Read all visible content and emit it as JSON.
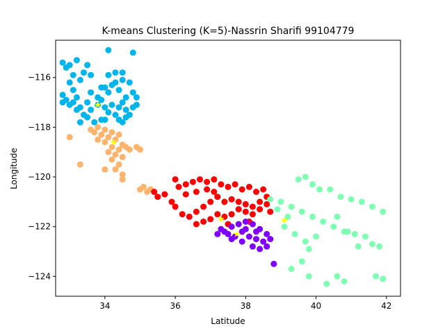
{
  "chart_data": {
    "type": "scatter",
    "title": "K-means Clustering (K=5)-Nassrin Sharifi 99104779",
    "xlabel": "Latitude",
    "ylabel": "Longitude",
    "xlim": [
      32.6,
      42.4
    ],
    "ylim": [
      -124.8,
      -114.5
    ],
    "xticks": [
      34,
      36,
      38,
      40,
      42
    ],
    "yticks": [
      -124,
      -122,
      -120,
      -118,
      -116
    ],
    "grid": false,
    "legend": "none",
    "series": [
      {
        "color": "#00b5eb",
        "points": [
          [
            32.8,
            -115.4
          ],
          [
            32.9,
            -115.6
          ],
          [
            33.0,
            -115.5
          ],
          [
            33.2,
            -115.3
          ],
          [
            33.1,
            -115.9
          ],
          [
            33.4,
            -115.8
          ],
          [
            33.5,
            -115.5
          ],
          [
            33.6,
            -115.9
          ],
          [
            33.3,
            -116.1
          ],
          [
            33.0,
            -116.2
          ],
          [
            32.8,
            -116.7
          ],
          [
            32.9,
            -116.9
          ],
          [
            33.0,
            -117.1
          ],
          [
            33.1,
            -117.0
          ],
          [
            33.2,
            -116.8
          ],
          [
            33.3,
            -117.2
          ],
          [
            33.5,
            -117.0
          ],
          [
            33.6,
            -117.3
          ],
          [
            33.4,
            -117.5
          ],
          [
            33.2,
            -117.3
          ],
          [
            33.8,
            -117.1
          ],
          [
            33.9,
            -116.9
          ],
          [
            34.0,
            -117.2
          ],
          [
            34.1,
            -117.4
          ],
          [
            34.2,
            -117.1
          ],
          [
            34.3,
            -117.5
          ],
          [
            34.4,
            -117.2
          ],
          [
            34.5,
            -117.0
          ],
          [
            34.6,
            -117.3
          ],
          [
            34.7,
            -117.5
          ],
          [
            34.8,
            -117.2
          ],
          [
            34.9,
            -117.1
          ],
          [
            34.6,
            -117.6
          ],
          [
            34.0,
            -116.4
          ],
          [
            34.2,
            -116.3
          ],
          [
            34.3,
            -116.2
          ],
          [
            34.4,
            -116.5
          ],
          [
            34.5,
            -116.1
          ],
          [
            34.1,
            -115.9
          ],
          [
            34.3,
            -115.8
          ],
          [
            34.5,
            -115.8
          ],
          [
            33.8,
            -116.8
          ],
          [
            33.9,
            -116.4
          ],
          [
            34.1,
            -116.6
          ],
          [
            34.7,
            -116.2
          ],
          [
            34.8,
            -116.6
          ],
          [
            34.9,
            -116.8
          ],
          [
            34.1,
            -114.9
          ],
          [
            34.8,
            -115.0
          ],
          [
            33.9,
            -117.7
          ],
          [
            33.7,
            -117.8
          ],
          [
            33.3,
            -117.8
          ],
          [
            33.5,
            -117.6
          ],
          [
            34.0,
            -117.7
          ],
          [
            34.4,
            -117.7
          ],
          [
            34.5,
            -117.8
          ],
          [
            33.1,
            -116.5
          ],
          [
            32.8,
            -117.0
          ],
          [
            33.6,
            -116.6
          ],
          [
            34.6,
            -116.8
          ]
        ],
        "centroid": [
          33.8,
          -117.1
        ]
      },
      {
        "color": "#ffb46e",
        "points": [
          [
            33.6,
            -118.1
          ],
          [
            33.7,
            -118.2
          ],
          [
            33.8,
            -118.0
          ],
          [
            33.9,
            -118.3
          ],
          [
            34.0,
            -118.1
          ],
          [
            34.1,
            -118.4
          ],
          [
            34.2,
            -118.2
          ],
          [
            34.3,
            -118.5
          ],
          [
            34.0,
            -118.6
          ],
          [
            34.2,
            -118.8
          ],
          [
            34.1,
            -119.0
          ],
          [
            34.3,
            -119.1
          ],
          [
            34.4,
            -118.9
          ],
          [
            34.5,
            -119.2
          ],
          [
            34.2,
            -119.3
          ],
          [
            34.4,
            -119.5
          ],
          [
            34.5,
            -118.7
          ],
          [
            34.6,
            -118.8
          ],
          [
            34.7,
            -118.9
          ],
          [
            34.9,
            -118.8
          ],
          [
            35.0,
            -118.9
          ],
          [
            34.0,
            -119.7
          ],
          [
            34.5,
            -119.9
          ],
          [
            34.5,
            -120.1
          ],
          [
            33.0,
            -118.4
          ],
          [
            33.3,
            -119.5
          ],
          [
            35.0,
            -120.5
          ],
          [
            35.1,
            -120.4
          ],
          [
            35.2,
            -120.6
          ],
          [
            35.3,
            -120.5
          ],
          [
            34.3,
            -119.7
          ],
          [
            33.8,
            -118.5
          ],
          [
            34.4,
            -118.3
          ]
        ],
        "centroid": [
          34.25,
          -118.6
        ]
      },
      {
        "color": "#ff0000",
        "points": [
          [
            35.4,
            -120.6
          ],
          [
            35.5,
            -120.8
          ],
          [
            35.7,
            -120.7
          ],
          [
            35.9,
            -121.0
          ],
          [
            36.0,
            -120.1
          ],
          [
            36.1,
            -120.4
          ],
          [
            36.3,
            -120.3
          ],
          [
            36.5,
            -120.2
          ],
          [
            36.7,
            -120.1
          ],
          [
            36.9,
            -120.2
          ],
          [
            37.1,
            -120.1
          ],
          [
            37.3,
            -120.3
          ],
          [
            37.5,
            -120.4
          ],
          [
            37.7,
            -120.3
          ],
          [
            37.9,
            -120.5
          ],
          [
            38.1,
            -120.4
          ],
          [
            38.3,
            -120.6
          ],
          [
            38.5,
            -120.5
          ],
          [
            38.6,
            -120.8
          ],
          [
            38.4,
            -121.0
          ],
          [
            38.2,
            -121.2
          ],
          [
            38.0,
            -121.1
          ],
          [
            37.8,
            -121.0
          ],
          [
            37.6,
            -120.9
          ],
          [
            37.4,
            -121.0
          ],
          [
            37.2,
            -120.8
          ],
          [
            37.0,
            -121.0
          ],
          [
            36.8,
            -121.2
          ],
          [
            36.6,
            -121.4
          ],
          [
            36.4,
            -121.6
          ],
          [
            36.2,
            -121.5
          ],
          [
            36.0,
            -121.2
          ],
          [
            36.6,
            -121.9
          ],
          [
            36.8,
            -121.8
          ],
          [
            37.0,
            -121.7
          ],
          [
            37.2,
            -121.5
          ],
          [
            37.4,
            -121.6
          ],
          [
            37.6,
            -121.5
          ],
          [
            37.8,
            -121.3
          ],
          [
            38.0,
            -121.4
          ],
          [
            38.2,
            -121.5
          ],
          [
            38.4,
            -121.3
          ],
          [
            38.6,
            -121.1
          ],
          [
            38.7,
            -121.4
          ],
          [
            38.1,
            -121.8
          ],
          [
            37.5,
            -121.9
          ],
          [
            36.3,
            -120.7
          ],
          [
            36.6,
            -120.6
          ],
          [
            36.9,
            -120.5
          ],
          [
            37.1,
            -120.6
          ]
        ],
        "centroid": [
          37.3,
          -121.7
        ]
      },
      {
        "color": "#8000ff",
        "points": [
          [
            37.2,
            -122.3
          ],
          [
            37.4,
            -122.2
          ],
          [
            37.6,
            -122.0
          ],
          [
            37.8,
            -121.9
          ],
          [
            38.0,
            -121.8
          ],
          [
            38.2,
            -121.9
          ],
          [
            38.4,
            -122.1
          ],
          [
            38.6,
            -122.3
          ],
          [
            38.7,
            -122.5
          ],
          [
            38.5,
            -122.6
          ],
          [
            38.3,
            -122.5
          ],
          [
            38.1,
            -122.4
          ],
          [
            37.9,
            -122.2
          ],
          [
            37.7,
            -122.4
          ],
          [
            37.5,
            -122.3
          ],
          [
            37.3,
            -122.1
          ],
          [
            38.2,
            -122.8
          ],
          [
            38.4,
            -122.9
          ],
          [
            38.6,
            -122.8
          ],
          [
            38.8,
            -123.5
          ],
          [
            37.9,
            -122.6
          ],
          [
            38.0,
            -122.1
          ],
          [
            38.3,
            -122.2
          ],
          [
            37.6,
            -122.5
          ]
        ],
        "centroid": [
          37.75,
          -122.3
        ]
      },
      {
        "color": "#80ffb4",
        "points": [
          [
            38.7,
            -120.9
          ],
          [
            39.0,
            -121.0
          ],
          [
            39.3,
            -121.2
          ],
          [
            39.6,
            -121.4
          ],
          [
            39.9,
            -121.6
          ],
          [
            40.2,
            -121.8
          ],
          [
            40.5,
            -122.0
          ],
          [
            40.8,
            -122.2
          ],
          [
            41.1,
            -122.3
          ],
          [
            41.4,
            -122.4
          ],
          [
            39.5,
            -120.1
          ],
          [
            39.7,
            -120.0
          ],
          [
            39.9,
            -120.3
          ],
          [
            40.1,
            -120.5
          ],
          [
            40.4,
            -120.5
          ],
          [
            40.7,
            -120.8
          ],
          [
            41.0,
            -120.9
          ],
          [
            41.3,
            -121.0
          ],
          [
            41.6,
            -121.2
          ],
          [
            41.9,
            -121.4
          ],
          [
            39.1,
            -122.0
          ],
          [
            39.4,
            -122.3
          ],
          [
            39.7,
            -122.6
          ],
          [
            40.0,
            -122.4
          ],
          [
            39.8,
            -122.9
          ],
          [
            39.6,
            -123.4
          ],
          [
            39.3,
            -123.7
          ],
          [
            41.2,
            -122.8
          ],
          [
            41.6,
            -122.7
          ],
          [
            41.8,
            -122.8
          ],
          [
            41.7,
            -124.0
          ],
          [
            41.9,
            -124.1
          ],
          [
            40.6,
            -124.0
          ],
          [
            40.8,
            -124.2
          ],
          [
            40.3,
            -124.3
          ],
          [
            39.8,
            -124.0
          ],
          [
            40.9,
            -122.2
          ],
          [
            39.2,
            -121.6
          ],
          [
            38.9,
            -121.3
          ],
          [
            40.6,
            -121.6
          ]
        ],
        "centroid": [
          39.1,
          -121.75
        ]
      }
    ]
  }
}
